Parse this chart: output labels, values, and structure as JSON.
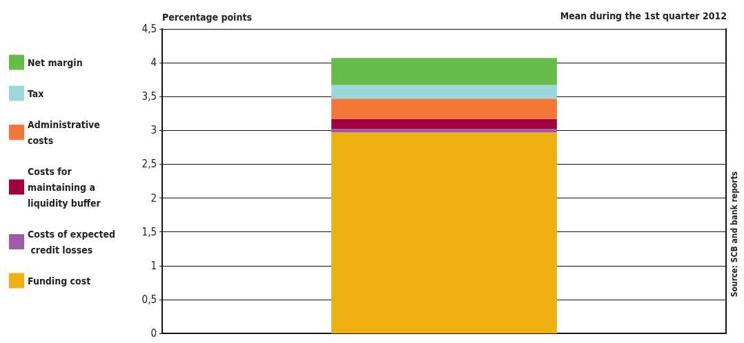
{
  "chart_data": {
    "type": "bar",
    "stacked": true,
    "subtitle": "Mean during the 1st quarter 2012",
    "ylabel": "Percentage points",
    "annotations": [
      "Source: SCB and bank reports"
    ],
    "categories": [
      null
    ],
    "series": [
      {
        "name": "Funding cost",
        "color": "#efb112",
        "values": [
          2.97
        ]
      },
      {
        "name": "Costs of expected credit losses",
        "color": "#9b5ba5",
        "values": [
          0.05
        ]
      },
      {
        "name": "Costs for maintaining a liquidity buffer",
        "color": "#a30042",
        "values": [
          0.15
        ]
      },
      {
        "name": "Administrative costs",
        "color": "#f37837",
        "values": [
          0.3
        ]
      },
      {
        "name": "Tax",
        "color": "#9dd8dc",
        "values": [
          0.2
        ]
      },
      {
        "name": "Net margin",
        "color": "#66bc49",
        "values": [
          0.4
        ]
      }
    ],
    "ylim": [
      0,
      4.5
    ],
    "yticks": [
      0,
      {
        "value": 0.5,
        "label": "0,5"
      },
      1,
      {
        "value": 1.5,
        "label": "1,5"
      },
      2,
      {
        "value": 2.5,
        "label": "2,5"
      },
      3,
      {
        "value": 3.5,
        "label": "3,5"
      },
      4,
      {
        "value": 4.5,
        "label": "4,5"
      }
    ],
    "grid": "y",
    "legend": "left"
  }
}
